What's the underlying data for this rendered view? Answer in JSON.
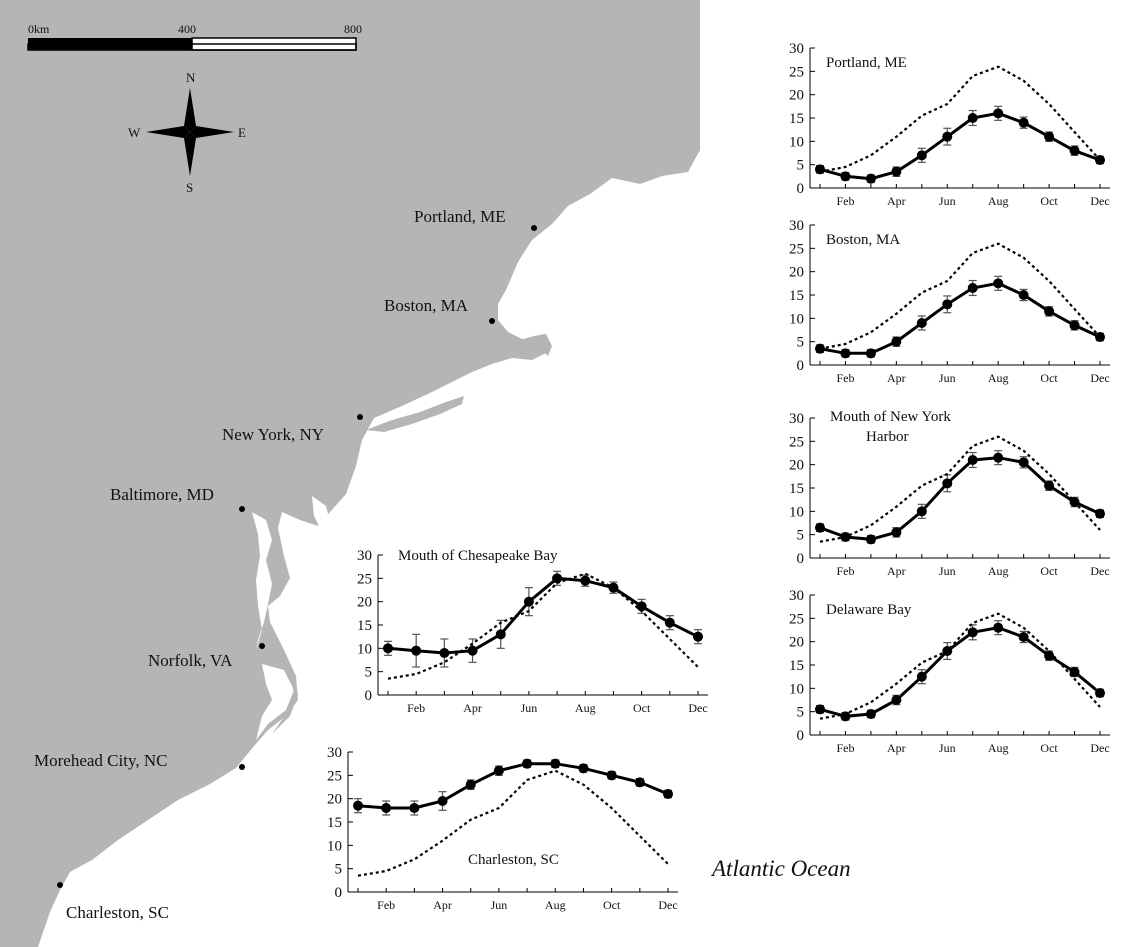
{
  "map": {
    "land_color": "#b5b5b5",
    "water_color": "#ffffff",
    "scale_bar": {
      "labels": [
        "0km",
        "400",
        "800"
      ]
    },
    "compass": {
      "n": "N",
      "s": "S",
      "e": "E",
      "w": "W"
    },
    "cities": [
      "Portland, ME",
      "Boston, MA",
      "New York, NY",
      "Baltimore, MD",
      "Norfolk, VA",
      "Morehead City, NC",
      "Charleston, SC"
    ],
    "ocean_label": "Atlantic Ocean"
  },
  "chart_data": [
    {
      "type": "line",
      "title": "Portland, ME",
      "x": [
        "Jan",
        "Feb",
        "Mar",
        "Apr",
        "May",
        "Jun",
        "Jul",
        "Aug",
        "Sep",
        "Oct",
        "Nov",
        "Dec"
      ],
      "x_tick_labels": [
        "Feb",
        "Apr",
        "Jun",
        "Aug",
        "Oct",
        "Dec"
      ],
      "ylim": [
        0,
        30
      ],
      "y_ticks": [
        0,
        5,
        10,
        15,
        20,
        25,
        30
      ],
      "series": [
        {
          "style": "solid-with-markers",
          "values": [
            4,
            2.5,
            2,
            3.5,
            7,
            11,
            15,
            16,
            14,
            11,
            8,
            6
          ],
          "errors": [
            0.8,
            0.8,
            0.8,
            1,
            1.5,
            1.8,
            1.6,
            1.5,
            1.2,
            1,
            1,
            0.8
          ]
        },
        {
          "style": "dashed",
          "values": [
            3.5,
            4.5,
            7,
            11,
            15.5,
            18,
            24,
            26,
            23,
            18,
            12,
            6
          ]
        }
      ]
    },
    {
      "type": "line",
      "title": "Boston, MA",
      "x": [
        "Jan",
        "Feb",
        "Mar",
        "Apr",
        "May",
        "Jun",
        "Jul",
        "Aug",
        "Sep",
        "Oct",
        "Nov",
        "Dec"
      ],
      "x_tick_labels": [
        "Feb",
        "Apr",
        "Jun",
        "Aug",
        "Oct",
        "Dec"
      ],
      "ylim": [
        0,
        30
      ],
      "y_ticks": [
        0,
        5,
        10,
        15,
        20,
        25,
        30
      ],
      "series": [
        {
          "style": "solid-with-markers",
          "values": [
            3.5,
            2.5,
            2.5,
            5,
            9,
            13,
            16.5,
            17.5,
            15,
            11.5,
            8.5,
            6
          ],
          "errors": [
            0.8,
            0.8,
            0.8,
            1,
            1.5,
            1.8,
            1.6,
            1.5,
            1.2,
            1,
            1,
            0.8
          ]
        },
        {
          "style": "dashed",
          "values": [
            3.5,
            4.5,
            7,
            11,
            15.5,
            18,
            24,
            26,
            23,
            18,
            12,
            6
          ]
        }
      ]
    },
    {
      "type": "line",
      "title": "Mouth of New York Harbor",
      "x": [
        "Jan",
        "Feb",
        "Mar",
        "Apr",
        "May",
        "Jun",
        "Jul",
        "Aug",
        "Sep",
        "Oct",
        "Nov",
        "Dec"
      ],
      "x_tick_labels": [
        "Feb",
        "Apr",
        "Jun",
        "Aug",
        "Oct",
        "Dec"
      ],
      "ylim": [
        0,
        30
      ],
      "y_ticks": [
        0,
        5,
        10,
        15,
        20,
        25,
        30
      ],
      "series": [
        {
          "style": "solid-with-markers",
          "values": [
            6.5,
            4.5,
            4,
            5.5,
            10,
            16,
            21,
            21.5,
            20.5,
            15.5,
            12,
            9.5
          ],
          "errors": [
            0.8,
            0.8,
            0.8,
            1,
            1.5,
            1.8,
            1.6,
            1.5,
            1.2,
            1,
            1,
            0.8
          ]
        },
        {
          "style": "dashed",
          "values": [
            3.5,
            4.5,
            7,
            11,
            15.5,
            18,
            24,
            26,
            23,
            18,
            12,
            6
          ]
        }
      ]
    },
    {
      "type": "line",
      "title": "Delaware Bay",
      "x": [
        "Jan",
        "Feb",
        "Mar",
        "Apr",
        "May",
        "Jun",
        "Jul",
        "Aug",
        "Sep",
        "Oct",
        "Nov",
        "Dec"
      ],
      "x_tick_labels": [
        "Feb",
        "Apr",
        "Jun",
        "Aug",
        "Oct",
        "Dec"
      ],
      "ylim": [
        0,
        30
      ],
      "y_ticks": [
        0,
        5,
        10,
        15,
        20,
        25,
        30
      ],
      "series": [
        {
          "style": "solid-with-markers",
          "values": [
            5.5,
            4,
            4.5,
            7.5,
            12.5,
            18,
            22,
            23,
            21,
            17,
            13.5,
            9
          ],
          "errors": [
            0.8,
            0.8,
            0.8,
            1,
            1.5,
            1.8,
            1.6,
            1.5,
            1.2,
            1,
            1,
            0.8
          ]
        },
        {
          "style": "dashed",
          "values": [
            3.5,
            4.5,
            7,
            11,
            15.5,
            18,
            24,
            26,
            23,
            18,
            12,
            6
          ]
        }
      ]
    },
    {
      "type": "line",
      "title": "Mouth of Chesapeake Bay",
      "x": [
        "Jan",
        "Feb",
        "Mar",
        "Apr",
        "May",
        "Jun",
        "Jul",
        "Aug",
        "Sep",
        "Oct",
        "Nov",
        "Dec"
      ],
      "x_tick_labels": [
        "Feb",
        "Apr",
        "Jun",
        "Aug",
        "Oct",
        "Dec"
      ],
      "ylim": [
        0,
        30
      ],
      "y_ticks": [
        0,
        5,
        10,
        15,
        20,
        25,
        30
      ],
      "series": [
        {
          "style": "solid-with-markers",
          "values": [
            10,
            9.5,
            9,
            9.5,
            13,
            20,
            25,
            24.5,
            23,
            19,
            15.5,
            12.5
          ],
          "errors": [
            1.5,
            3.5,
            3,
            2.5,
            3,
            3,
            1.5,
            1.2,
            1.2,
            1.5,
            1.5,
            1.5
          ]
        },
        {
          "style": "dashed",
          "values": [
            3.5,
            4.5,
            7,
            11,
            15.5,
            18,
            24,
            26,
            23,
            18,
            12,
            6
          ]
        }
      ]
    },
    {
      "type": "line",
      "title": "Charleston, SC",
      "x": [
        "Jan",
        "Feb",
        "Mar",
        "Apr",
        "May",
        "Jun",
        "Jul",
        "Aug",
        "Sep",
        "Oct",
        "Nov",
        "Dec"
      ],
      "x_tick_labels": [
        "Feb",
        "Apr",
        "Jun",
        "Aug",
        "Oct",
        "Dec"
      ],
      "ylim": [
        0,
        30
      ],
      "y_ticks": [
        0,
        5,
        10,
        15,
        20,
        25,
        30
      ],
      "series": [
        {
          "style": "solid-with-markers",
          "values": [
            18.5,
            18,
            18,
            19.5,
            23,
            26,
            27.5,
            27.5,
            26.5,
            25,
            23.5,
            21
          ],
          "errors": [
            1.5,
            1.5,
            1.5,
            2,
            1,
            1,
            0.8,
            0.8,
            0.8,
            0.8,
            0.8,
            0.8
          ]
        },
        {
          "style": "dashed",
          "values": [
            3.5,
            4.5,
            7,
            11,
            15.5,
            18,
            24,
            26,
            23,
            18,
            12,
            6
          ]
        }
      ]
    }
  ]
}
